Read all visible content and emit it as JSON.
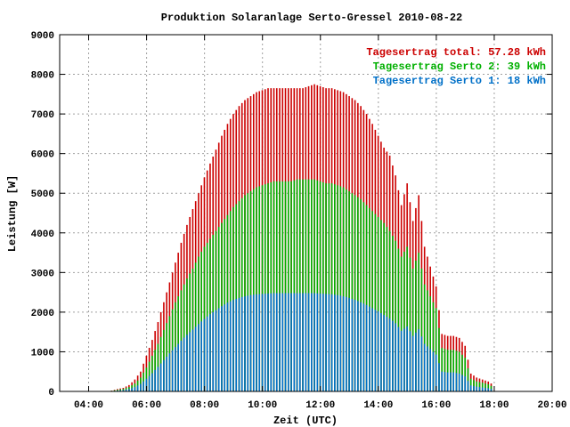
{
  "chart_data": {
    "type": "bar",
    "title": "Produktion Solaranlage Serto-Gressel 2010-08-22",
    "xlabel": "Zeit (UTC)",
    "ylabel": "Leistung [W]",
    "xlim": [
      3.0,
      20.0
    ],
    "ylim": [
      0,
      9000
    ],
    "x_ticks": [
      {
        "v": 4,
        "label": "04:00"
      },
      {
        "v": 6,
        "label": "06:00"
      },
      {
        "v": 8,
        "label": "08:00"
      },
      {
        "v": 10,
        "label": "10:00"
      },
      {
        "v": 12,
        "label": "12:00"
      },
      {
        "v": 14,
        "label": "14:00"
      },
      {
        "v": 16,
        "label": "16:00"
      },
      {
        "v": 18,
        "label": "18:00"
      },
      {
        "v": 20,
        "label": "20:00"
      }
    ],
    "y_ticks": [
      {
        "v": 0,
        "label": "0"
      },
      {
        "v": 1000,
        "label": "1000"
      },
      {
        "v": 2000,
        "label": "2000"
      },
      {
        "v": 3000,
        "label": "3000"
      },
      {
        "v": 4000,
        "label": "4000"
      },
      {
        "v": 5000,
        "label": "5000"
      },
      {
        "v": 6000,
        "label": "6000"
      },
      {
        "v": 7000,
        "label": "7000"
      },
      {
        "v": 8000,
        "label": "8000"
      },
      {
        "v": 9000,
        "label": "9000"
      }
    ],
    "grid": true,
    "legend_position": "top-right",
    "sample_interval_hours": 0.1,
    "x": [
      4.8,
      5.0,
      5.2,
      5.4,
      5.6,
      5.8,
      6.0,
      6.2,
      6.4,
      6.6,
      6.8,
      7.0,
      7.2,
      7.4,
      7.6,
      7.8,
      8.0,
      8.2,
      8.4,
      8.6,
      8.8,
      9.0,
      9.2,
      9.4,
      9.6,
      9.8,
      10.0,
      10.2,
      10.4,
      10.6,
      10.8,
      11.0,
      11.2,
      11.4,
      11.6,
      11.8,
      12.0,
      12.2,
      12.4,
      12.6,
      12.8,
      13.0,
      13.2,
      13.4,
      13.6,
      13.8,
      14.0,
      14.2,
      14.4,
      14.6,
      14.8,
      15.0,
      15.2,
      15.4,
      15.6,
      15.8,
      16.0,
      16.2,
      16.4,
      16.6,
      16.8,
      17.0,
      17.2,
      17.4,
      17.6,
      17.8,
      18.0
    ],
    "series": [
      {
        "name": "Tagesertrag total: 57.28 kWh",
        "color": "#cc0000",
        "values": [
          20,
          60,
          90,
          160,
          300,
          500,
          900,
          1300,
          1750,
          2250,
          2750,
          3250,
          3750,
          4200,
          4600,
          5000,
          5400,
          5750,
          6100,
          6450,
          6750,
          7000,
          7200,
          7350,
          7450,
          7550,
          7600,
          7650,
          7650,
          7650,
          7650,
          7650,
          7650,
          7650,
          7700,
          7750,
          7700,
          7650,
          7650,
          7600,
          7550,
          7450,
          7350,
          7200,
          7000,
          6750,
          6450,
          6150,
          5950,
          5450,
          4700,
          5250,
          4300,
          4950,
          3650,
          3150,
          2650,
          1450,
          1400,
          1400,
          1350,
          1150,
          450,
          350,
          300,
          250,
          150
        ]
      },
      {
        "name": "Tagesertrag Serto 2: 39 kWh",
        "color": "#00b000",
        "values": [
          15,
          40,
          65,
          110,
          200,
          350,
          600,
          900,
          1200,
          1550,
          1900,
          2250,
          2550,
          2850,
          3100,
          3400,
          3650,
          3850,
          4050,
          4250,
          4450,
          4650,
          4800,
          4950,
          5050,
          5150,
          5200,
          5250,
          5300,
          5300,
          5300,
          5300,
          5350,
          5350,
          5350,
          5350,
          5300,
          5250,
          5250,
          5200,
          5150,
          5050,
          4950,
          4850,
          4700,
          4550,
          4400,
          4250,
          4050,
          3800,
          3400,
          3650,
          3100,
          3500,
          2700,
          2400,
          2100,
          1100,
          1050,
          1050,
          1000,
          850,
          320,
          250,
          220,
          180,
          100
        ]
      },
      {
        "name": "Tagesertrag Serto 1: 18 kWh",
        "color": "#0070c8",
        "values": [
          8,
          20,
          35,
          60,
          110,
          190,
          320,
          460,
          620,
          790,
          960,
          1120,
          1280,
          1430,
          1560,
          1700,
          1830,
          1950,
          2050,
          2150,
          2240,
          2310,
          2360,
          2400,
          2430,
          2450,
          2460,
          2470,
          2480,
          2480,
          2480,
          2480,
          2480,
          2480,
          2480,
          2480,
          2470,
          2460,
          2450,
          2430,
          2400,
          2360,
          2310,
          2250,
          2180,
          2100,
          2020,
          1930,
          1840,
          1720,
          1530,
          1640,
          1400,
          1570,
          1200,
          1070,
          930,
          500,
          480,
          480,
          450,
          380,
          150,
          120,
          100,
          80,
          50
        ]
      }
    ]
  }
}
